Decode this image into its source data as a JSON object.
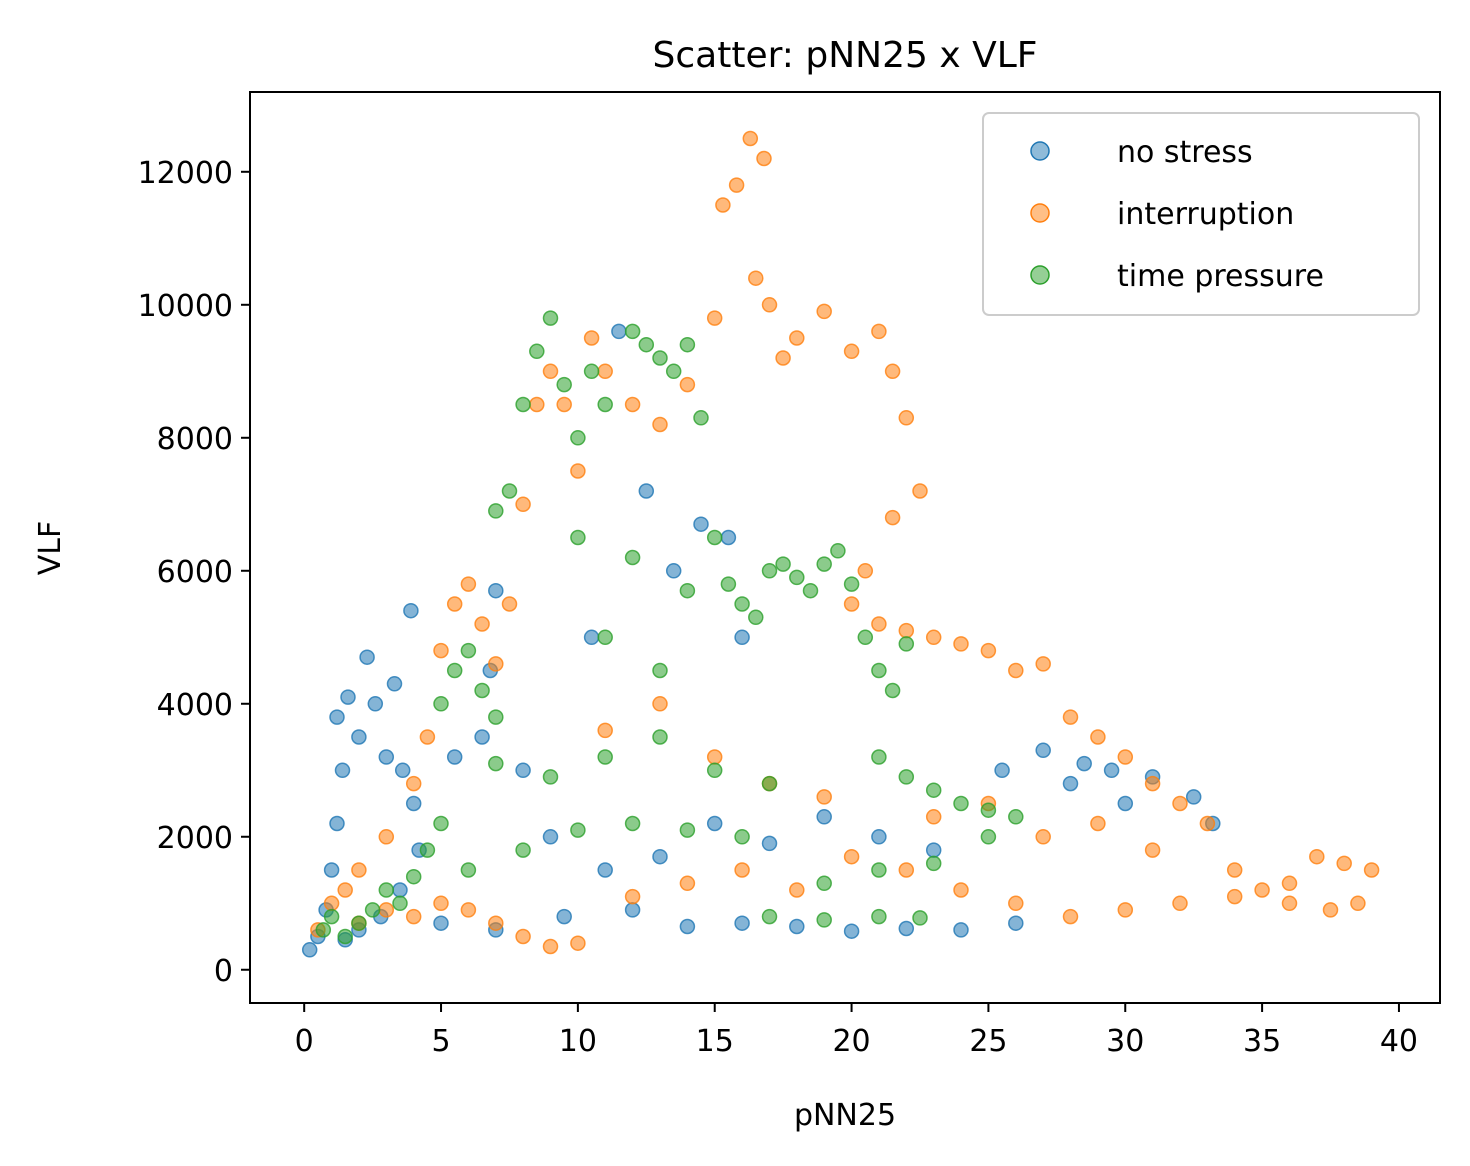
{
  "chart_data": {
    "type": "scatter",
    "title": "Scatter: pNN25 x VLF",
    "xlabel": "pNN25",
    "ylabel": "VLF",
    "xlim": [
      -1.98,
      41.5
    ],
    "ylim": [
      -500,
      13200
    ],
    "xticks": [
      0,
      5,
      10,
      15,
      20,
      25,
      30,
      35,
      40
    ],
    "yticks": [
      0,
      2000,
      4000,
      6000,
      8000,
      10000,
      12000
    ],
    "grid": false,
    "legend_position": "top-right",
    "series": [
      {
        "name": "no stress",
        "color": "#1f77b4",
        "points": [
          [
            0.2,
            300
          ],
          [
            0.5,
            500
          ],
          [
            0.8,
            900
          ],
          [
            1.0,
            1500
          ],
          [
            1.2,
            2200
          ],
          [
            1.4,
            3000
          ],
          [
            1.2,
            3800
          ],
          [
            1.6,
            4100
          ],
          [
            2.0,
            3500
          ],
          [
            2.3,
            4700
          ],
          [
            2.6,
            4000
          ],
          [
            3.0,
            3200
          ],
          [
            3.3,
            4300
          ],
          [
            3.6,
            3000
          ],
          [
            3.9,
            5400
          ],
          [
            4.0,
            2500
          ],
          [
            4.2,
            1800
          ],
          [
            3.5,
            1200
          ],
          [
            2.8,
            800
          ],
          [
            2.0,
            600
          ],
          [
            1.5,
            450
          ],
          [
            5.5,
            3200
          ],
          [
            6.5,
            3500
          ],
          [
            7.0,
            5700
          ],
          [
            6.8,
            4500
          ],
          [
            8.0,
            3000
          ],
          [
            10.5,
            5000
          ],
          [
            11.5,
            9600
          ],
          [
            12.5,
            7200
          ],
          [
            13.5,
            6000
          ],
          [
            14.5,
            6700
          ],
          [
            15.5,
            6500
          ],
          [
            16.0,
            5000
          ],
          [
            14.0,
            650
          ],
          [
            16.0,
            700
          ],
          [
            18.0,
            650
          ],
          [
            20.0,
            580
          ],
          [
            22.0,
            620
          ],
          [
            24.0,
            600
          ],
          [
            26.0,
            700
          ],
          [
            25.5,
            3000
          ],
          [
            27.0,
            3300
          ],
          [
            28.5,
            3100
          ],
          [
            29.5,
            3000
          ],
          [
            31.0,
            2900
          ],
          [
            32.5,
            2600
          ],
          [
            33.2,
            2200
          ],
          [
            30.0,
            2500
          ],
          [
            28.0,
            2800
          ],
          [
            9.0,
            2000
          ],
          [
            11.0,
            1500
          ],
          [
            13.0,
            1700
          ],
          [
            15.0,
            2200
          ],
          [
            17.0,
            1900
          ],
          [
            19.0,
            2300
          ],
          [
            21.0,
            2000
          ],
          [
            23.0,
            1800
          ],
          [
            5.0,
            700
          ],
          [
            7.0,
            600
          ],
          [
            9.5,
            800
          ],
          [
            12.0,
            900
          ]
        ]
      },
      {
        "name": "interruption",
        "color": "#ff7f0e",
        "points": [
          [
            0.5,
            600
          ],
          [
            1.0,
            1000
          ],
          [
            2.0,
            1500
          ],
          [
            3.0,
            2000
          ],
          [
            4.0,
            2800
          ],
          [
            4.5,
            3500
          ],
          [
            5.0,
            4800
          ],
          [
            5.5,
            5500
          ],
          [
            6.0,
            5800
          ],
          [
            6.5,
            5200
          ],
          [
            7.0,
            4600
          ],
          [
            7.5,
            5500
          ],
          [
            8.0,
            7000
          ],
          [
            8.5,
            8500
          ],
          [
            9.0,
            9000
          ],
          [
            9.5,
            8500
          ],
          [
            10.0,
            7500
          ],
          [
            10.5,
            9500
          ],
          [
            11.0,
            9000
          ],
          [
            12.0,
            8500
          ],
          [
            13.0,
            8200
          ],
          [
            14.0,
            8800
          ],
          [
            15.0,
            9800
          ],
          [
            15.3,
            11500
          ],
          [
            15.8,
            11800
          ],
          [
            16.3,
            12500
          ],
          [
            16.8,
            12200
          ],
          [
            17.0,
            10000
          ],
          [
            16.5,
            10400
          ],
          [
            17.5,
            9200
          ],
          [
            18.0,
            9500
          ],
          [
            19.0,
            9900
          ],
          [
            20.0,
            9300
          ],
          [
            21.0,
            9600
          ],
          [
            21.5,
            9000
          ],
          [
            22.0,
            8300
          ],
          [
            22.5,
            7200
          ],
          [
            21.5,
            6800
          ],
          [
            20.5,
            6000
          ],
          [
            20.0,
            5500
          ],
          [
            21.0,
            5200
          ],
          [
            22.0,
            5100
          ],
          [
            23.0,
            5000
          ],
          [
            24.0,
            4900
          ],
          [
            25.0,
            4800
          ],
          [
            26.0,
            4500
          ],
          [
            27.0,
            4600
          ],
          [
            28.0,
            3800
          ],
          [
            29.0,
            3500
          ],
          [
            30.0,
            3200
          ],
          [
            31.0,
            2800
          ],
          [
            32.0,
            2500
          ],
          [
            33.0,
            2200
          ],
          [
            34.0,
            1500
          ],
          [
            35.0,
            1200
          ],
          [
            36.0,
            1300
          ],
          [
            37.0,
            1700
          ],
          [
            38.0,
            1600
          ],
          [
            39.0,
            1500
          ],
          [
            38.5,
            1000
          ],
          [
            37.5,
            900
          ],
          [
            36.0,
            1000
          ],
          [
            34.0,
            1100
          ],
          [
            32.0,
            1000
          ],
          [
            30.0,
            900
          ],
          [
            28.0,
            800
          ],
          [
            26.0,
            1000
          ],
          [
            24.0,
            1200
          ],
          [
            22.0,
            1500
          ],
          [
            20.0,
            1700
          ],
          [
            18.0,
            1200
          ],
          [
            16.0,
            1500
          ],
          [
            14.0,
            1300
          ],
          [
            12.0,
            1100
          ],
          [
            10.0,
            400
          ],
          [
            9.0,
            350
          ],
          [
            8.0,
            500
          ],
          [
            7.0,
            700
          ],
          [
            6.0,
            900
          ],
          [
            5.0,
            1000
          ],
          [
            4.0,
            800
          ],
          [
            3.0,
            900
          ],
          [
            2.0,
            700
          ],
          [
            1.5,
            1200
          ],
          [
            27.0,
            2000
          ],
          [
            29.0,
            2200
          ],
          [
            31.0,
            1800
          ],
          [
            25.0,
            2500
          ],
          [
            23.0,
            2300
          ],
          [
            19.0,
            2600
          ],
          [
            17.0,
            2800
          ],
          [
            15.0,
            3200
          ],
          [
            13.0,
            4000
          ],
          [
            11.0,
            3600
          ]
        ]
      },
      {
        "name": "time pressure",
        "color": "#2ca02c",
        "points": [
          [
            0.7,
            600
          ],
          [
            1.0,
            800
          ],
          [
            1.5,
            500
          ],
          [
            2.0,
            700
          ],
          [
            2.5,
            900
          ],
          [
            3.0,
            1200
          ],
          [
            3.5,
            1000
          ],
          [
            4.0,
            1400
          ],
          [
            4.5,
            1800
          ],
          [
            5.0,
            2200
          ],
          [
            5.0,
            4000
          ],
          [
            5.5,
            4500
          ],
          [
            6.0,
            4800
          ],
          [
            6.5,
            4200
          ],
          [
            7.0,
            3800
          ],
          [
            7.0,
            6900
          ],
          [
            7.5,
            7200
          ],
          [
            8.0,
            8500
          ],
          [
            8.5,
            9300
          ],
          [
            9.0,
            9800
          ],
          [
            9.5,
            8800
          ],
          [
            10.0,
            8000
          ],
          [
            10.5,
            9000
          ],
          [
            11.0,
            8500
          ],
          [
            12.0,
            9600
          ],
          [
            12.5,
            9400
          ],
          [
            13.0,
            9200
          ],
          [
            13.5,
            9000
          ],
          [
            14.0,
            9400
          ],
          [
            14.5,
            8300
          ],
          [
            15.0,
            6500
          ],
          [
            15.5,
            5800
          ],
          [
            16.0,
            5500
          ],
          [
            16.5,
            5300
          ],
          [
            17.0,
            6000
          ],
          [
            17.5,
            6100
          ],
          [
            18.0,
            5900
          ],
          [
            18.5,
            5700
          ],
          [
            19.0,
            6100
          ],
          [
            19.5,
            6300
          ],
          [
            20.0,
            5800
          ],
          [
            20.5,
            5000
          ],
          [
            21.0,
            4500
          ],
          [
            21.5,
            4200
          ],
          [
            22.0,
            4900
          ],
          [
            21.0,
            3200
          ],
          [
            22.0,
            2900
          ],
          [
            23.0,
            2700
          ],
          [
            24.0,
            2500
          ],
          [
            25.0,
            2400
          ],
          [
            26.0,
            2300
          ],
          [
            25.0,
            2000
          ],
          [
            23.0,
            1600
          ],
          [
            21.0,
            1500
          ],
          [
            19.0,
            1300
          ],
          [
            17.0,
            800
          ],
          [
            19.0,
            750
          ],
          [
            21.0,
            800
          ],
          [
            22.5,
            780
          ],
          [
            16.0,
            2000
          ],
          [
            14.0,
            2100
          ],
          [
            12.0,
            2200
          ],
          [
            10.0,
            2100
          ],
          [
            8.0,
            1800
          ],
          [
            6.0,
            1500
          ],
          [
            11.0,
            3200
          ],
          [
            13.0,
            3500
          ],
          [
            15.0,
            3000
          ],
          [
            17.0,
            2800
          ],
          [
            9.0,
            2900
          ],
          [
            7.0,
            3100
          ],
          [
            10.0,
            6500
          ],
          [
            12.0,
            6200
          ],
          [
            14.0,
            5700
          ],
          [
            13.0,
            4500
          ],
          [
            11.0,
            5000
          ]
        ]
      }
    ]
  }
}
